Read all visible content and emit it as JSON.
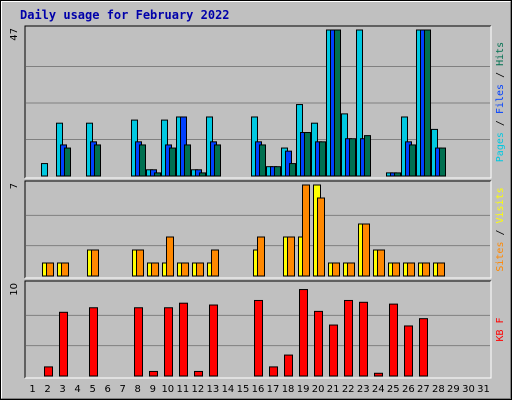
{
  "chart_data": {
    "title": "Daily usage for February 2022",
    "type": "bar",
    "days": [
      "1",
      "2",
      "3",
      "4",
      "5",
      "6",
      "7",
      "8",
      "9",
      "10",
      "11",
      "12",
      "13",
      "14",
      "15",
      "16",
      "17",
      "18",
      "19",
      "20",
      "21",
      "22",
      "23",
      "24",
      "25",
      "26",
      "27",
      "28",
      "29",
      "30",
      "31"
    ],
    "weekend_days": [
      5,
      6,
      12,
      13,
      19,
      20,
      26,
      27
    ],
    "colors": {
      "hits": "#00c8e0",
      "files": "#0040ff",
      "pages": "#007050",
      "visits": "#ffff00",
      "sites": "#ff8800",
      "kb": "#ff0000",
      "weekend_label": "#008060",
      "background": "#c0c0c0",
      "grid": "#808080"
    },
    "panels": [
      {
        "id": "hits",
        "scale_label": "47",
        "ymax": 47,
        "axis_title": [
          {
            "text": "Pages",
            "color": "#00c8e0"
          },
          {
            "text": " / ",
            "color": "#000000"
          },
          {
            "text": "Files",
            "color": "#0040ff"
          },
          {
            "text": " / ",
            "color": "#000000"
          },
          {
            "text": "Hits",
            "color": "#007050"
          }
        ],
        "series": [
          {
            "name": "Hits",
            "key": "hits",
            "values": [
              0,
              4,
              17,
              0,
              17,
              0,
              0,
              18,
              2,
              18,
              19,
              2,
              19,
              0,
              0,
              19,
              3,
              9,
              23,
              17,
              47,
              20,
              47,
              0,
              1,
              19,
              47,
              15,
              0,
              0,
              0
            ]
          },
          {
            "name": "Files",
            "key": "files",
            "values": [
              0,
              0,
              10,
              0,
              11,
              0,
              0,
              11,
              2,
              10,
              19,
              2,
              11,
              0,
              0,
              11,
              3,
              8,
              14,
              11,
              47,
              12,
              12,
              0,
              1,
              11,
              47,
              9,
              0,
              0,
              0
            ]
          },
          {
            "name": "Pages",
            "key": "pages",
            "values": [
              0,
              0,
              9,
              0,
              10,
              0,
              0,
              10,
              1,
              9,
              10,
              1,
              10,
              0,
              0,
              10,
              3,
              4,
              14,
              11,
              47,
              12,
              13,
              0,
              1,
              10,
              47,
              9,
              0,
              0,
              0
            ]
          }
        ]
      },
      {
        "id": "visits",
        "scale_label": "7",
        "ymax": 7,
        "axis_title": [
          {
            "text": "Sites",
            "color": "#ff8800"
          },
          {
            "text": " / ",
            "color": "#000000"
          },
          {
            "text": "Visits",
            "color": "#ffff00"
          }
        ],
        "series": [
          {
            "name": "Visits",
            "key": "visits",
            "values": [
              0,
              1,
              1,
              0,
              2,
              0,
              0,
              2,
              1,
              1,
              1,
              1,
              1,
              0,
              0,
              2,
              0,
              3,
              3,
              7,
              1,
              1,
              4,
              2,
              1,
              1,
              1,
              1,
              0,
              0,
              0
            ]
          },
          {
            "name": "Sites",
            "key": "sites",
            "values": [
              0,
              1,
              1,
              0,
              2,
              0,
              0,
              2,
              1,
              3,
              1,
              1,
              2,
              0,
              0,
              3,
              0,
              3,
              7,
              6,
              1,
              1,
              4,
              2,
              1,
              1,
              1,
              1,
              0,
              0,
              0
            ]
          }
        ]
      },
      {
        "id": "kb",
        "scale_label": "10",
        "ymax": 10,
        "axis_title": [
          {
            "text": "KB F",
            "color": "#ff0000"
          }
        ],
        "series": [
          {
            "name": "KB F",
            "key": "kb",
            "values": [
              0,
              1,
              7,
              0,
              7.5,
              0,
              0,
              7.5,
              0.5,
              7.5,
              8,
              0.5,
              7.8,
              0,
              0,
              8.3,
              1,
              2.3,
              9.5,
              7.1,
              5.6,
              8.3,
              8.1,
              0.3,
              7.9,
              5.5,
              6.3,
              0,
              0,
              0,
              0
            ]
          }
        ]
      }
    ]
  }
}
